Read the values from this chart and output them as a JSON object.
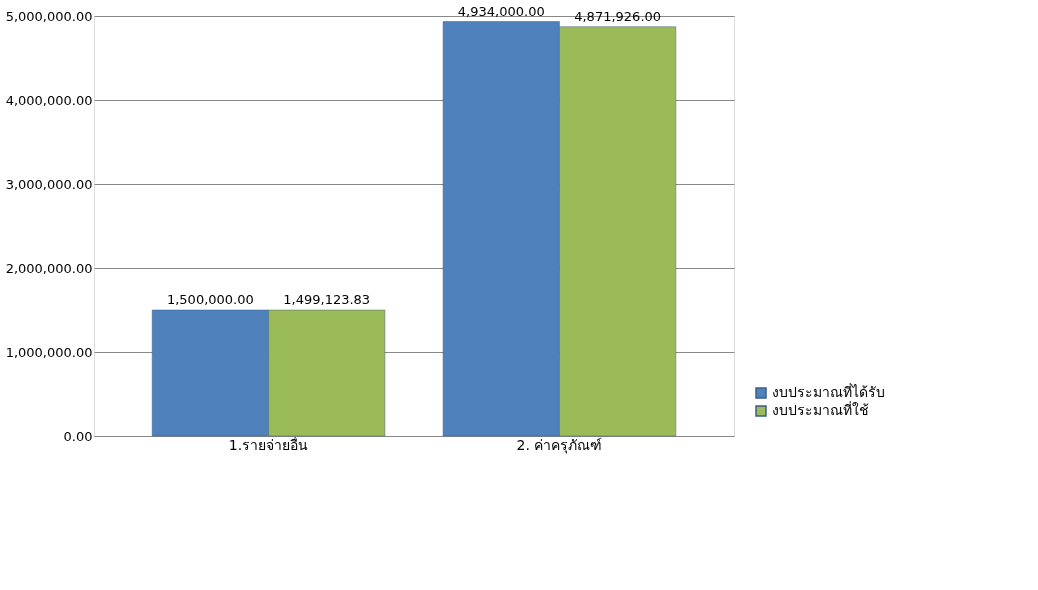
{
  "chart_data": {
    "type": "bar",
    "categories": [
      "1.รายจ่ายอื่น",
      "2. ค่าครุภัณฑ์"
    ],
    "series": [
      {
        "name": "งบประมาณที่ได้รับ",
        "color": "#4f81bd",
        "values": [
          1500000,
          4934000
        ],
        "value_labels": [
          "1,500,000.00",
          "4,934,000.00"
        ]
      },
      {
        "name": "งบประมาณที่ใช้",
        "color": "#9bbb59",
        "values": [
          1499123.83,
          4871926
        ],
        "value_labels": [
          "1,499,123.83",
          "4,871,926.00"
        ]
      }
    ],
    "ylim": [
      0,
      5000000
    ],
    "yticks": [
      {
        "value": 0,
        "label": "0.00"
      },
      {
        "value": 1000000,
        "label": "1,000,000.00"
      },
      {
        "value": 2000000,
        "label": "2,000,000.00"
      },
      {
        "value": 3000000,
        "label": "3,000,000.00"
      },
      {
        "value": 4000000,
        "label": "4,000,000.00"
      },
      {
        "value": 5000000,
        "label": "5,000,000.00"
      }
    ],
    "grid": "y",
    "legend": "bottom right"
  }
}
